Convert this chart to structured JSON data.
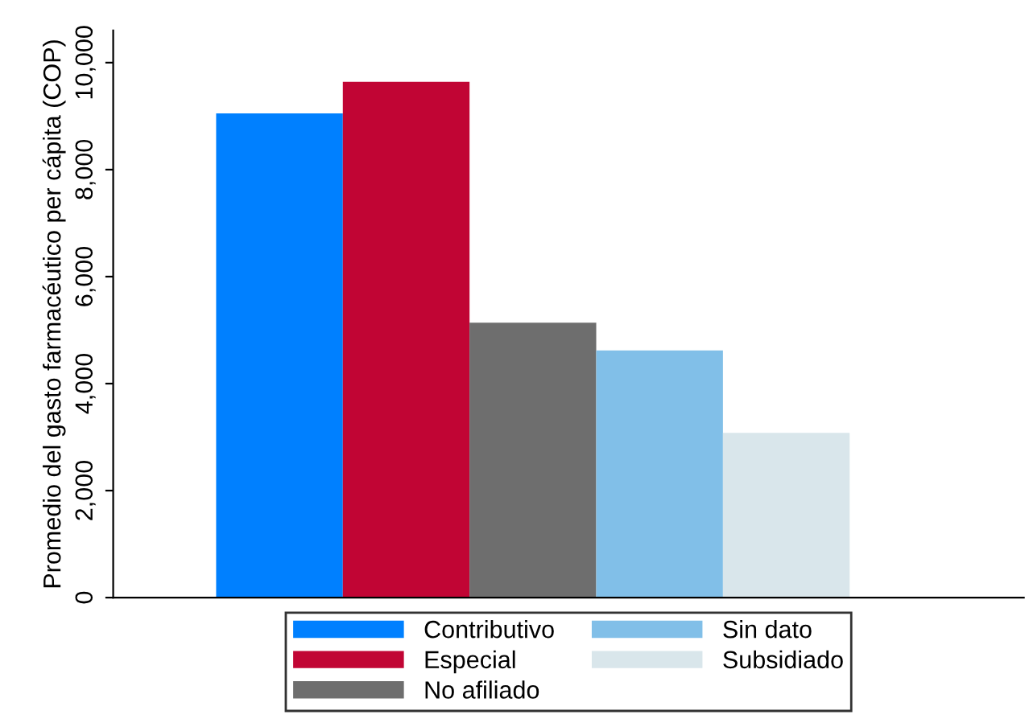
{
  "chart_data": {
    "type": "bar",
    "ylabel": "Promedio del gasto farmacéutico per cápita (COP)",
    "categories": [
      null
    ],
    "series": [
      {
        "name": "Contributivo",
        "color": "#0080ff",
        "values": [
          9050
        ]
      },
      {
        "name": "Especial",
        "color": "#c10534",
        "values": [
          9640
        ]
      },
      {
        "name": "No afiliado",
        "color": "#6e6e6e",
        "values": [
          5140
        ]
      },
      {
        "name": "Sin dato",
        "color": "#81bfe8",
        "values": [
          4620
        ]
      },
      {
        "name": "Subsidiado",
        "color": "#d9e6eb",
        "values": [
          3080
        ]
      }
    ],
    "ylim": [
      0,
      10600
    ],
    "yticks": [
      {
        "value": 0,
        "label": "0"
      },
      {
        "value": 2000,
        "label": "2,000"
      },
      {
        "value": 4000,
        "label": "4,000"
      },
      {
        "value": 6000,
        "label": "6,000"
      },
      {
        "value": 8000,
        "label": "8,000"
      },
      {
        "value": 10000,
        "label": "10,000"
      }
    ],
    "grid": false,
    "legend": "bottom"
  }
}
